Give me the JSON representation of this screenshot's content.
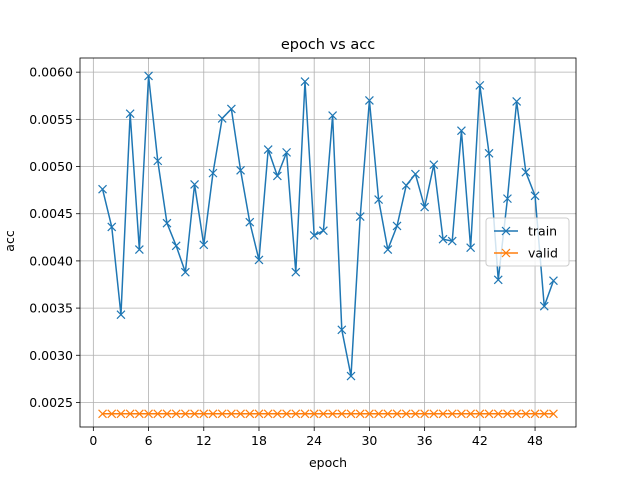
{
  "chart_data": {
    "type": "line",
    "title": "epoch vs acc",
    "xlabel": "epoch",
    "ylabel": "acc",
    "xlim": [
      -1.45,
      52.45
    ],
    "ylim": [
      0.00224,
      0.00615
    ],
    "xticks": [
      0,
      6,
      12,
      18,
      24,
      30,
      36,
      42,
      48
    ],
    "yticks": [
      0.0025,
      0.003,
      0.0035,
      0.004,
      0.0045,
      0.005,
      0.0055,
      0.006
    ],
    "ytick_labels": [
      "0.0025",
      "0.0030",
      "0.0035",
      "0.0040",
      "0.0045",
      "0.0050",
      "0.0055",
      "0.0060"
    ],
    "grid": true,
    "legend_position": "center-right",
    "x": [
      1,
      2,
      3,
      4,
      5,
      6,
      7,
      8,
      9,
      10,
      11,
      12,
      13,
      14,
      15,
      16,
      17,
      18,
      19,
      20,
      21,
      22,
      23,
      24,
      25,
      26,
      27,
      28,
      29,
      30,
      31,
      32,
      33,
      34,
      35,
      36,
      37,
      38,
      39,
      40,
      41,
      42,
      43,
      44,
      45,
      46,
      47,
      48,
      49,
      50
    ],
    "series": [
      {
        "name": "train",
        "color": "#1f77b4",
        "marker": "x",
        "values": [
          0.00476,
          0.00436,
          0.00343,
          0.00556,
          0.00412,
          0.00596,
          0.00506,
          0.0044,
          0.00416,
          0.00388,
          0.00481,
          0.00417,
          0.00493,
          0.00551,
          0.00561,
          0.00496,
          0.00441,
          0.00401,
          0.00518,
          0.0049,
          0.00515,
          0.00388,
          0.0059,
          0.00427,
          0.00432,
          0.00554,
          0.00327,
          0.00278,
          0.00447,
          0.0057,
          0.00465,
          0.00412,
          0.00437,
          0.0048,
          0.00492,
          0.00457,
          0.00502,
          0.00423,
          0.00421,
          0.00538,
          0.00414,
          0.00586,
          0.00514,
          0.0038,
          0.00466,
          0.00569,
          0.00494,
          0.00469,
          0.00352,
          0.00379
        ]
      },
      {
        "name": "valid",
        "color": "#ff7f0e",
        "marker": "x",
        "values": [
          0.00238,
          0.00238,
          0.00238,
          0.00238,
          0.00238,
          0.00238,
          0.00238,
          0.00238,
          0.00238,
          0.00238,
          0.00238,
          0.00238,
          0.00238,
          0.00238,
          0.00238,
          0.00238,
          0.00238,
          0.00238,
          0.00238,
          0.00238,
          0.00238,
          0.00238,
          0.00238,
          0.00238,
          0.00238,
          0.00238,
          0.00238,
          0.00238,
          0.00238,
          0.00238,
          0.00238,
          0.00238,
          0.00238,
          0.00238,
          0.00238,
          0.00238,
          0.00238,
          0.00238,
          0.00238,
          0.00238,
          0.00238,
          0.00238,
          0.00238,
          0.00238,
          0.00238,
          0.00238,
          0.00238,
          0.00238,
          0.00238,
          0.00238
        ]
      }
    ]
  }
}
